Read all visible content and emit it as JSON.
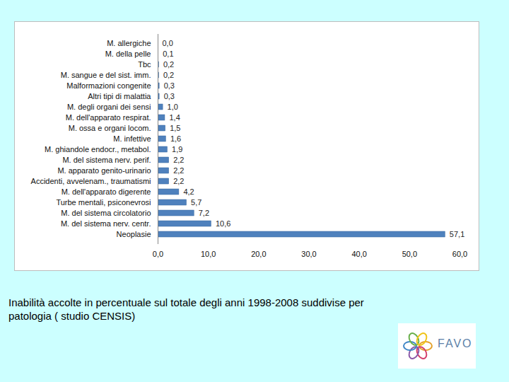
{
  "chart_data": {
    "type": "bar",
    "orientation": "horizontal",
    "caption": "Inabilità accolte in percentuale sul totale degli anni 1998-2008 suddivise per patologia ( studio CENSIS)",
    "logo": "FAVO",
    "categories": [
      "M. allergiche",
      "M. della pelle",
      "Tbc",
      "M. sangue e del sist. imm.",
      "Malformazioni congenite",
      "Altri tipi di malattia",
      "M. degli organi dei sensi",
      "M. dell'apparato respirat.",
      "M. ossa e organi locom.",
      "M. infettive",
      "M. ghiandole endocr., metabol.",
      "M. del sistema nerv. perif.",
      "M. apparato genito-urinario",
      "Accidenti, avvelenam., traumatismi",
      "M. dell'apparato digerente",
      "Turbe mentali, psiconevrosi",
      "M. del sistema circolatorio",
      "M. del sistema nerv. centr.",
      "Neoplasie"
    ],
    "values": [
      0.0,
      0.1,
      0.2,
      0.2,
      0.3,
      0.3,
      1.0,
      1.4,
      1.5,
      1.6,
      1.9,
      2.2,
      2.2,
      2.2,
      4.2,
      5.7,
      7.2,
      10.6,
      57.1
    ],
    "value_labels": [
      "0,0",
      "0,1",
      "0,2",
      "0,2",
      "0,3",
      "0,3",
      "1,0",
      "1,4",
      "1,5",
      "1,6",
      "1,9",
      "2,2",
      "2,2",
      "2,2",
      "4,2",
      "5,7",
      "7,2",
      "10,6",
      "57,1"
    ],
    "data_labels": true,
    "color": "#4f81bd",
    "xlim": [
      0,
      60
    ],
    "xticks": [
      {
        "value": 0,
        "label": "0,0"
      },
      {
        "value": 10,
        "label": "10,0"
      },
      {
        "value": 20,
        "label": "20,0"
      },
      {
        "value": 30,
        "label": "30,0"
      },
      {
        "value": 40,
        "label": "40,0"
      },
      {
        "value": 50,
        "label": "50,0"
      },
      {
        "value": 60,
        "label": "60,0"
      }
    ],
    "grid": false
  }
}
